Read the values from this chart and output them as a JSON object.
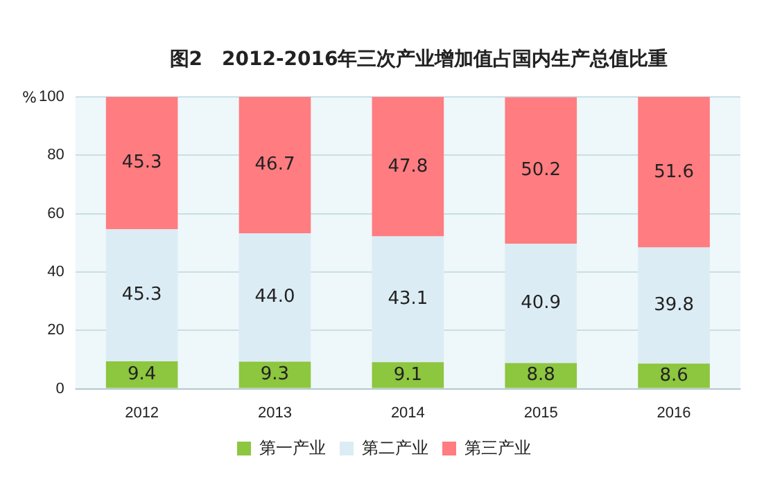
{
  "chart_data": {
    "type": "bar",
    "stacked": true,
    "title": "图2　2012-2016年三次产业增加值占国内生产总值比重",
    "ylabel": "%",
    "categories": [
      "2012",
      "2013",
      "2014",
      "2015",
      "2016"
    ],
    "series": [
      {
        "name": "第一产业",
        "color": "#8dc63f",
        "values": [
          9.4,
          9.3,
          9.1,
          8.8,
          8.6
        ],
        "value_labels": [
          "9.4",
          "9.3",
          "9.1",
          "8.8",
          "8.6"
        ]
      },
      {
        "name": "第二产业",
        "color": "#dcecf4",
        "values": [
          45.3,
          44.0,
          43.1,
          40.9,
          39.8
        ],
        "value_labels": [
          "45.3",
          "44.0",
          "43.1",
          "40.9",
          "39.8"
        ]
      },
      {
        "name": "第三产业",
        "color": "#ff7c80",
        "values": [
          45.3,
          46.7,
          47.8,
          50.2,
          51.6
        ],
        "value_labels": [
          "45.3",
          "46.7",
          "47.8",
          "50.2",
          "51.6"
        ]
      }
    ],
    "ylim": [
      0,
      100
    ],
    "yticks": [
      0,
      20,
      40,
      60,
      80,
      100
    ],
    "grid": "y",
    "legend": "bottom"
  }
}
